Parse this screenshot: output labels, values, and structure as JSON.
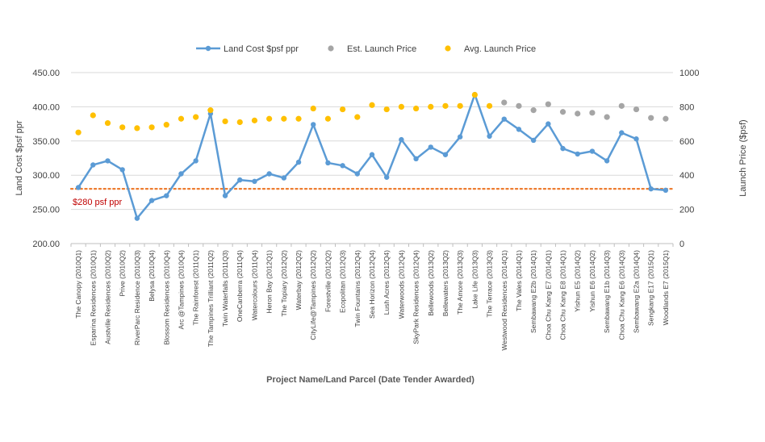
{
  "chart_data": {
    "type": "line",
    "xlabel": "Project Name/Land Parcel (Date Tender Awarded)",
    "ylabel": "Land Cost $psf ppr",
    "y2label": "Launch Price ($psf)",
    "ylim": [
      200,
      450
    ],
    "y2lim": [
      0,
      1000
    ],
    "yticks": [
      "200.00",
      "250.00",
      "300.00",
      "350.00",
      "400.00",
      "450.00"
    ],
    "y2ticks": [
      "0",
      "200",
      "400",
      "600",
      "800",
      "1000"
    ],
    "grid": true,
    "legend_position": "top",
    "reference_line": {
      "label": "$280 psf ppr",
      "value": 280,
      "color": "#ED7D31",
      "label_color": "#C00000"
    },
    "categories": [
      "The Canopy (2010Q1)",
      "Esparina Residences (2010Q1)",
      "Austville Residences (2010Q2)",
      "Prive (2010Q2)",
      "RiverParc Residence (2010Q3)",
      "Belysa (2010Q4)",
      "Blossom Residences (2010Q4)",
      "Arc @Tampines (2010Q4)",
      "The Rainforest (2011Q1)",
      "The Tampines Trilliant (2011Q2)",
      "Twin Waterfalls (2011Q3)",
      "OneCanberra (2011Q4)",
      "Watercolours (2011Q4)",
      "Heron Bay (2012Q1)",
      "The Topiary (2012Q2)",
      "Waterbay (2012Q2)",
      "CityLife@Tampines (2012Q2)",
      "Forestville (2012Q2)",
      "Ecopolitan (2012Q3)",
      "Twin Fountains (2012Q4)",
      "Sea Horizon (2012Q4)",
      "Lush Acres (2012Q4)",
      "Waterwoods (2012Q4)",
      "SkyPark Residences (2012Q4)",
      "Bellewoods (2013Q2)",
      "Bellewaters (2013Q2)",
      "The Amore (2013Q3)",
      "Lake Life (2013Q3)",
      "The Terrace (2013Q3)",
      "Westwood Residences (2014Q1)",
      "The Vales (2014Q1)",
      "Sembawang E2b (2014Q1)",
      "Choa Chu Kang E7 (2014Q1)",
      "Choa Chu Kang E8 (2014Q1)",
      "Yishun E5 (2014Q2)",
      "Yishun E6 (2014Q2)",
      "Sembawang E1b (2014Q3)",
      "Choa Chu Kang E6 (2014Q3)",
      "Sembawang E2a (2014Q4)",
      "Sengkang E17 (2015Q1)",
      "Woodlands E7 (2015Q1)"
    ],
    "series": [
      {
        "name": "Land Cost $psf ppr",
        "type": "line",
        "axis": "left",
        "color": "#5B9BD5",
        "values": [
          282,
          315,
          321,
          308,
          237,
          263,
          270,
          302,
          321,
          390,
          270,
          293,
          291,
          302,
          296,
          319,
          374,
          318,
          314,
          302,
          330,
          297,
          352,
          324,
          341,
          330,
          356,
          418,
          357,
          382,
          367,
          351,
          375,
          339,
          331,
          335,
          321,
          362,
          353,
          280,
          278
        ]
      },
      {
        "name": "Est. Launch Price",
        "type": "scatter",
        "axis": "right",
        "color": "#A5A5A5",
        "values": [
          null,
          null,
          null,
          null,
          null,
          null,
          null,
          null,
          null,
          null,
          null,
          null,
          null,
          null,
          null,
          null,
          null,
          null,
          null,
          null,
          null,
          null,
          null,
          null,
          null,
          null,
          null,
          null,
          null,
          825,
          805,
          780,
          815,
          770,
          760,
          765,
          740,
          805,
          785,
          735,
          730
        ]
      },
      {
        "name": "Avg. Launch Price",
        "type": "scatter",
        "axis": "right",
        "color": "#FFC000",
        "values": [
          650,
          750,
          705,
          680,
          675,
          680,
          695,
          730,
          740,
          780,
          715,
          710,
          720,
          730,
          730,
          730,
          790,
          730,
          785,
          740,
          810,
          785,
          800,
          790,
          800,
          805,
          805,
          870,
          805,
          null,
          null,
          null,
          null,
          null,
          null,
          null,
          null,
          null,
          null,
          null,
          null
        ]
      }
    ]
  }
}
